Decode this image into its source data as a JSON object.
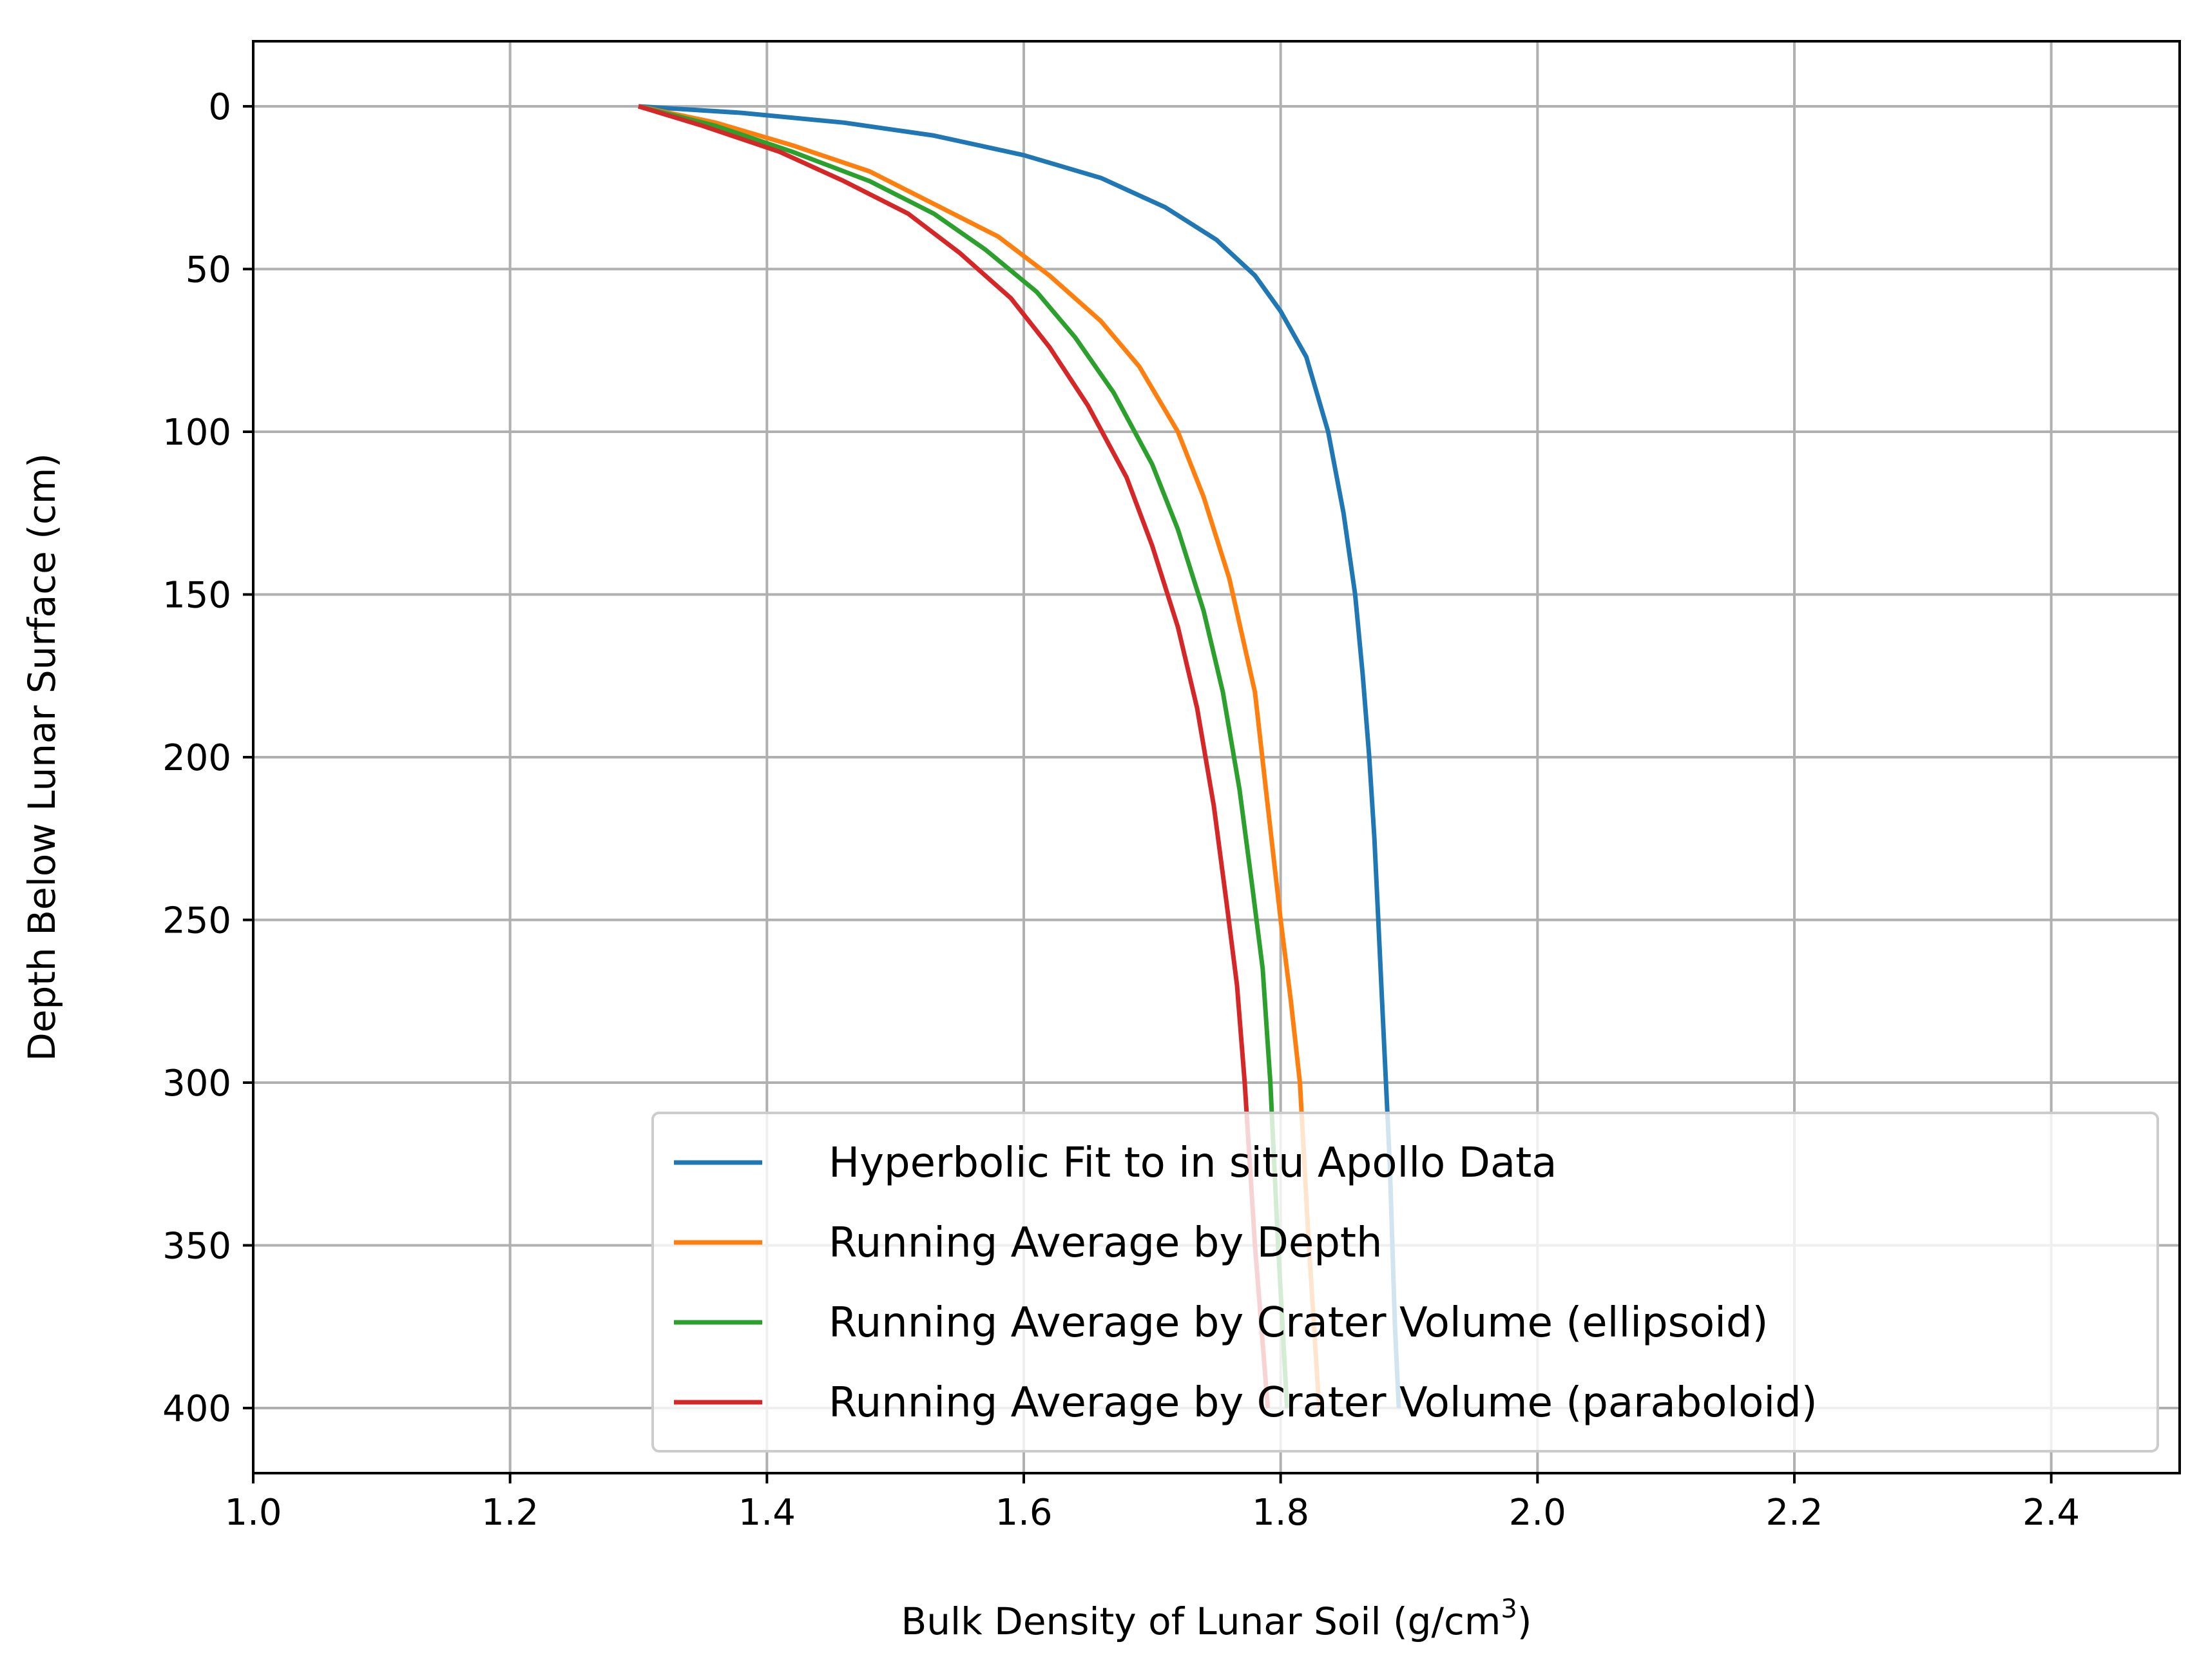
{
  "chart_data": {
    "type": "line",
    "title": "",
    "xlabel": "Bulk Density of Lunar Soil (g/cm",
    "xlabel_superscript": "3",
    "xlabel_close": ")",
    "ylabel": "Depth Below Lunar Surface (cm)",
    "xlim": [
      1.0,
      2.5
    ],
    "ylim": [
      420,
      -20
    ],
    "y_inverted": true,
    "grid": true,
    "legend_position": "lower-right",
    "x_ticks": [
      "1.0",
      "1.2",
      "1.4",
      "1.6",
      "1.8",
      "2.0",
      "2.2",
      "2.4"
    ],
    "y_ticks": [
      "0",
      "50",
      "100",
      "150",
      "200",
      "250",
      "300",
      "350",
      "400"
    ],
    "series": [
      {
        "name": "Hyperbolic Fit to in situ Apollo Data",
        "color": "#1f77b4",
        "x": [
          1.3,
          1.38,
          1.46,
          1.53,
          1.6,
          1.66,
          1.71,
          1.75,
          1.78,
          1.8,
          1.82,
          1.837,
          1.849,
          1.858,
          1.864,
          1.869,
          1.873,
          1.876,
          1.879,
          1.882,
          1.885,
          1.889,
          1.892
        ],
        "y": [
          0,
          2,
          5,
          9,
          15,
          22,
          31,
          41,
          52,
          63,
          77,
          100,
          125,
          150,
          175,
          200,
          225,
          250,
          275,
          300,
          325,
          375,
          400
        ]
      },
      {
        "name": "Running Average by Depth",
        "color": "#ff7f0e",
        "x": [
          1.3,
          1.36,
          1.42,
          1.48,
          1.53,
          1.58,
          1.62,
          1.66,
          1.69,
          1.72,
          1.74,
          1.76,
          1.78,
          1.79,
          1.8,
          1.808,
          1.815,
          1.822,
          1.83
        ],
        "y": [
          0,
          5,
          12,
          20,
          30,
          40,
          52,
          66,
          80,
          100,
          120,
          145,
          180,
          215,
          250,
          275,
          300,
          350,
          400
        ]
      },
      {
        "name": "Running Average by Crater Volume (ellipsoid)",
        "color": "#2ca02c",
        "x": [
          1.3,
          1.36,
          1.42,
          1.48,
          1.53,
          1.57,
          1.61,
          1.64,
          1.67,
          1.7,
          1.72,
          1.74,
          1.755,
          1.768,
          1.778,
          1.786,
          1.792,
          1.798,
          1.805
        ],
        "y": [
          0,
          6,
          14,
          23,
          33,
          44,
          57,
          71,
          88,
          110,
          130,
          155,
          180,
          210,
          240,
          265,
          300,
          350,
          400
        ]
      },
      {
        "name": "Running Average by Crater Volume (paraboloid)",
        "color": "#d62728",
        "x": [
          1.3,
          1.35,
          1.41,
          1.46,
          1.51,
          1.55,
          1.59,
          1.62,
          1.65,
          1.68,
          1.7,
          1.72,
          1.735,
          1.748,
          1.758,
          1.766,
          1.772,
          1.78,
          1.79
        ],
        "y": [
          0,
          6,
          14,
          23,
          33,
          45,
          59,
          74,
          92,
          114,
          135,
          160,
          185,
          215,
          245,
          270,
          300,
          350,
          400
        ]
      }
    ]
  }
}
